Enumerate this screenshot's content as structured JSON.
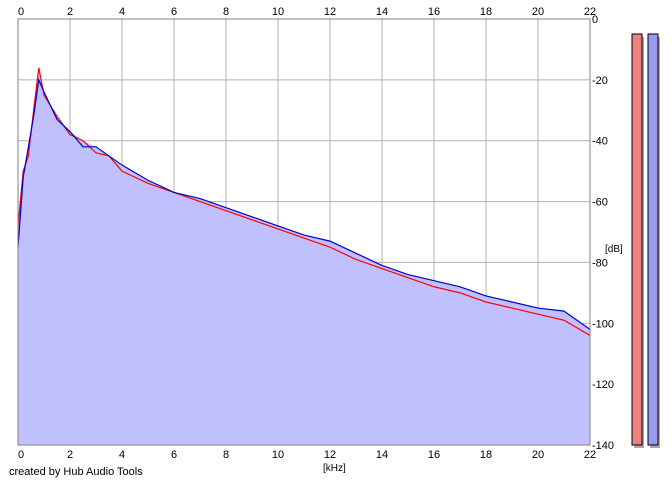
{
  "chart_data": {
    "type": "area",
    "xlabel": "[kHz]",
    "ylabel": "[dB]",
    "xlim": [
      0,
      22
    ],
    "ylim": [
      -140,
      0
    ],
    "x_ticks": [
      "0",
      "2",
      "4",
      "6",
      "8",
      "10",
      "12",
      "14",
      "16",
      "18",
      "20",
      "22"
    ],
    "y_ticks": [
      "0",
      "-20",
      "-40",
      "-60",
      "-80",
      "-100",
      "-120",
      "-140"
    ],
    "grid": true,
    "colors": {
      "fill": "#c0c0ff",
      "series_a": "#ff0000",
      "series_b": "#0000cc",
      "meter_a": "#f08080",
      "meter_b": "#9999ee"
    },
    "series": [
      {
        "color": "#ff0000",
        "x": [
          0,
          0.2,
          0.4,
          0.6,
          0.8,
          1,
          1.5,
          2,
          2.5,
          3,
          3.5,
          4,
          5,
          6,
          7,
          8,
          9,
          10,
          11,
          12,
          13,
          14,
          15,
          16,
          17,
          18,
          19,
          20,
          21,
          22
        ],
        "y": [
          -68,
          -50,
          -45,
          -30,
          -16,
          -25,
          -32,
          -38,
          -40,
          -44,
          -45,
          -50,
          -54,
          -57,
          -60,
          -63,
          -66,
          -69,
          -72,
          -75,
          -79,
          -82,
          -85,
          -88,
          -90,
          -93,
          -95,
          -97,
          -99,
          -104
        ]
      },
      {
        "color": "#0000cc",
        "x": [
          0,
          0.2,
          0.4,
          0.6,
          0.8,
          1,
          1.5,
          2,
          2.5,
          3,
          3.5,
          4,
          5,
          6,
          7,
          8,
          9,
          10,
          11,
          12,
          13,
          14,
          15,
          16,
          17,
          18,
          19,
          20,
          21,
          22
        ],
        "y": [
          -75,
          -52,
          -42,
          -32,
          -20,
          -24,
          -33,
          -37,
          -42,
          -42,
          -45,
          -48,
          -53,
          -57,
          -59,
          -62,
          -65,
          -68,
          -71,
          -73,
          -77,
          -81,
          -84,
          -86,
          -88,
          -91,
          -93,
          -95,
          -96,
          -102
        ]
      }
    ],
    "meters": [
      {
        "color": "#f08080",
        "level_db": 0
      },
      {
        "color": "#9999ee",
        "level_db": 0
      }
    ]
  },
  "footer": {
    "credit": "created by Hub Audio Tools"
  }
}
